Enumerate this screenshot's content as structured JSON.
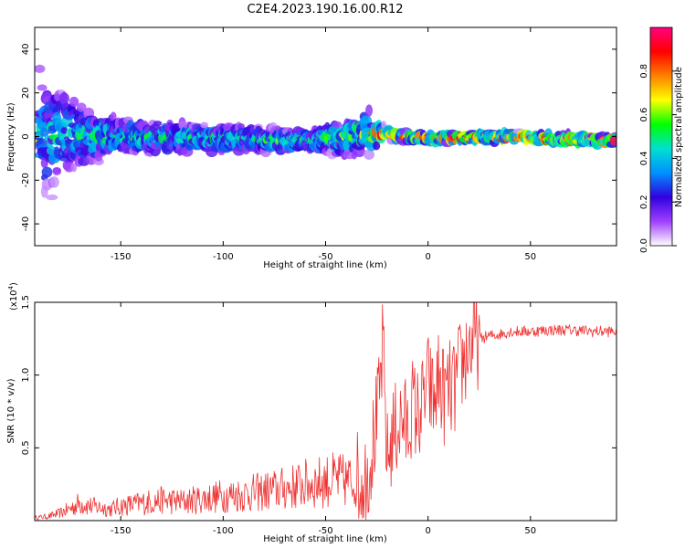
{
  "title": "C2E4.2023.190.16.00.R12",
  "chart_data": [
    {
      "type": "heatmap",
      "xlabel": "Height of straight line (km)",
      "ylabel": "Frequency (Hz)",
      "xlim": [
        -192,
        92
      ],
      "ylim": [
        -50,
        50
      ],
      "x_ticks": [
        -150,
        -100,
        -50,
        0,
        50
      ],
      "y_ticks": [
        -40,
        -20,
        0,
        20,
        40
      ],
      "colorbar": {
        "label": "Normalized spectral amplitude",
        "range": [
          0,
          1
        ],
        "ticks": [
          "0.0",
          "0.2",
          "0.4",
          "0.6",
          "0.8"
        ],
        "colormap": [
          "#ffffff",
          "#a040ff",
          "#3000e0",
          "#0090ff",
          "#00e0d0",
          "#00ff00",
          "#ffff00",
          "#ff8000",
          "#ff0000",
          "#ff0080"
        ]
      },
      "ridge": [
        {
          "x": -190,
          "center_hz": 0,
          "spread_hz": 38,
          "peak_amp": 0.45
        },
        {
          "x": -170,
          "center_hz": 0,
          "spread_hz": 18,
          "peak_amp": 0.5
        },
        {
          "x": -150,
          "center_hz": 0,
          "spread_hz": 10,
          "peak_amp": 0.5
        },
        {
          "x": -100,
          "center_hz": -1,
          "spread_hz": 8,
          "peak_amp": 0.5
        },
        {
          "x": -60,
          "center_hz": -2,
          "spread_hz": 6,
          "peak_amp": 0.55
        },
        {
          "x": -40,
          "center_hz": 0,
          "spread_hz": 10,
          "peak_amp": 0.6
        },
        {
          "x": -30,
          "center_hz": 2,
          "spread_hz": 14,
          "peak_amp": 0.65
        },
        {
          "x": -20,
          "center_hz": 1,
          "spread_hz": 3,
          "peak_amp": 0.9
        },
        {
          "x": 0,
          "center_hz": -1,
          "spread_hz": 3,
          "peak_amp": 0.9
        },
        {
          "x": 40,
          "center_hz": 0,
          "spread_hz": 3,
          "peak_amp": 0.9
        },
        {
          "x": 90,
          "center_hz": -2,
          "spread_hz": 3,
          "peak_amp": 0.9
        }
      ]
    },
    {
      "type": "line",
      "xlabel": "Height of straight line (km)",
      "ylabel": "SNR (10 * v/v)",
      "y_multiplier": "(x10",
      "y_multiplier_exp": "4",
      "y_multiplier_close": ")",
      "xlim": [
        -192,
        92
      ],
      "ylim": [
        0.0,
        1.5
      ],
      "x_ticks": [
        -150,
        -100,
        -50,
        0,
        50
      ],
      "y_ticks": [
        "0.5",
        "1.0",
        "1.5"
      ],
      "series": [
        {
          "color": "#ee3333",
          "x": [
            -192,
            -185,
            -180,
            -175,
            -170,
            -165,
            -160,
            -155,
            -150,
            -140,
            -130,
            -120,
            -110,
            -100,
            -90,
            -80,
            -70,
            -60,
            -50,
            -45,
            -40,
            -35,
            -30,
            -28,
            -26,
            -24,
            -22,
            -20,
            -18,
            -15,
            -12,
            -10,
            -8,
            -5,
            -2,
            0,
            3,
            5,
            8,
            10,
            13,
            15,
            18,
            20,
            25,
            30,
            35,
            40,
            50,
            60,
            70,
            80,
            92
          ],
          "y": [
            0.02,
            0.03,
            0.05,
            0.08,
            0.12,
            0.1,
            0.09,
            0.08,
            0.1,
            0.12,
            0.14,
            0.13,
            0.15,
            0.17,
            0.18,
            0.2,
            0.22,
            0.25,
            0.27,
            0.28,
            0.27,
            0.28,
            0.3,
            0.45,
            0.6,
            0.8,
            1.2,
            0.4,
            0.55,
            0.65,
            0.7,
            0.6,
            0.8,
            0.72,
            0.82,
            0.95,
            0.8,
            0.98,
            0.85,
            0.9,
            0.9,
            1.02,
            1.12,
            1.2,
            1.25,
            1.27,
            1.28,
            1.3,
            1.3,
            1.31,
            1.31,
            1.3,
            1.3
          ]
        }
      ]
    }
  ]
}
